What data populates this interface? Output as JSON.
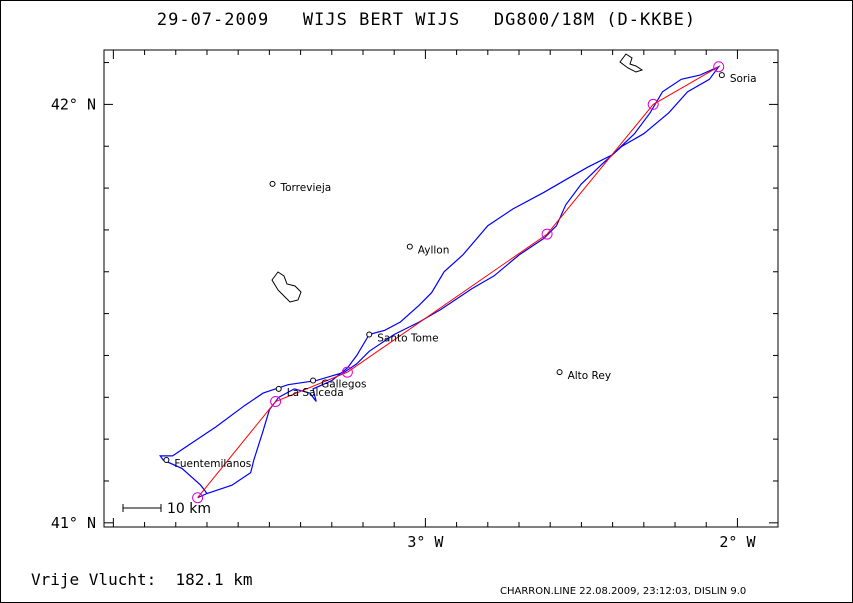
{
  "title": "29-07-2009   WIJS BERT WIJS   DG800/18M (D-KKBE)",
  "footer": {
    "distance_label": "Vrije Vlucht:",
    "distance_value": "182.1 km",
    "credit": "CHARRON.LINE 22.08.2009, 23:12:03, DISLIN 9.0"
  },
  "scale_bar": {
    "label": "10 km"
  },
  "chart_data": {
    "type": "map",
    "axes": {
      "lat_ticks": [
        {
          "value": 42,
          "label": "42° N"
        },
        {
          "value": 41,
          "label": "41° N"
        }
      ],
      "lon_ticks": [
        {
          "value": -3,
          "label": "3° W"
        },
        {
          "value": -2,
          "label": "2° W"
        }
      ],
      "lon_range": [
        -4.03,
        -1.87
      ],
      "lat_range": [
        40.99,
        42.13
      ]
    },
    "places": [
      {
        "name": "Soria",
        "lon": -2.05,
        "lat": 42.07
      },
      {
        "name": "Torrevieja",
        "lon": -3.49,
        "lat": 41.81
      },
      {
        "name": "Ayllon",
        "lon": -3.05,
        "lat": 41.66
      },
      {
        "name": "Santo Tome",
        "lon": -3.18,
        "lat": 41.45
      },
      {
        "name": "Alto Rey",
        "lon": -2.57,
        "lat": 41.36
      },
      {
        "name": "Gallegos",
        "lon": -3.36,
        "lat": 41.34
      },
      {
        "name": "La Salceda",
        "lon": -3.47,
        "lat": 41.32
      },
      {
        "name": "Fuentemilanos",
        "lon": -3.83,
        "lat": 41.15
      }
    ],
    "task_points": [
      {
        "lon": -3.73,
        "lat": 41.06
      },
      {
        "lon": -3.48,
        "lat": 41.29
      },
      {
        "lon": -3.25,
        "lat": 41.36
      },
      {
        "lon": -2.61,
        "lat": 41.69
      },
      {
        "lon": -2.27,
        "lat": 42.0
      },
      {
        "lon": -2.06,
        "lat": 42.09
      }
    ],
    "track": [
      {
        "lon": -3.73,
        "lat": 41.06
      },
      {
        "lon": -3.7,
        "lat": 41.07
      },
      {
        "lon": -3.62,
        "lat": 41.09
      },
      {
        "lon": -3.56,
        "lat": 41.12
      },
      {
        "lon": -3.55,
        "lat": 41.15
      },
      {
        "lon": -3.52,
        "lat": 41.22
      },
      {
        "lon": -3.5,
        "lat": 41.27
      },
      {
        "lon": -3.47,
        "lat": 41.3
      },
      {
        "lon": -3.42,
        "lat": 41.32
      },
      {
        "lon": -3.37,
        "lat": 41.31
      },
      {
        "lon": -3.35,
        "lat": 41.29
      },
      {
        "lon": -3.36,
        "lat": 41.32
      },
      {
        "lon": -3.3,
        "lat": 41.34
      },
      {
        "lon": -3.25,
        "lat": 41.37
      },
      {
        "lon": -3.22,
        "lat": 41.4
      },
      {
        "lon": -3.18,
        "lat": 41.45
      },
      {
        "lon": -3.13,
        "lat": 41.46
      },
      {
        "lon": -3.08,
        "lat": 41.48
      },
      {
        "lon": -3.02,
        "lat": 41.52
      },
      {
        "lon": -2.98,
        "lat": 41.55
      },
      {
        "lon": -2.94,
        "lat": 41.6
      },
      {
        "lon": -2.88,
        "lat": 41.64
      },
      {
        "lon": -2.8,
        "lat": 41.71
      },
      {
        "lon": -2.72,
        "lat": 41.75
      },
      {
        "lon": -2.62,
        "lat": 41.79
      },
      {
        "lon": -2.55,
        "lat": 41.82
      },
      {
        "lon": -2.48,
        "lat": 41.85
      },
      {
        "lon": -2.4,
        "lat": 41.88
      },
      {
        "lon": -2.33,
        "lat": 41.93
      },
      {
        "lon": -2.28,
        "lat": 41.98
      },
      {
        "lon": -2.24,
        "lat": 42.03
      },
      {
        "lon": -2.18,
        "lat": 42.06
      },
      {
        "lon": -2.12,
        "lat": 42.07
      },
      {
        "lon": -2.06,
        "lat": 42.09
      },
      {
        "lon": -2.09,
        "lat": 42.06
      },
      {
        "lon": -2.16,
        "lat": 42.03
      },
      {
        "lon": -2.22,
        "lat": 41.98
      },
      {
        "lon": -2.3,
        "lat": 41.93
      },
      {
        "lon": -2.37,
        "lat": 41.9
      },
      {
        "lon": -2.43,
        "lat": 41.86
      },
      {
        "lon": -2.5,
        "lat": 41.81
      },
      {
        "lon": -2.55,
        "lat": 41.76
      },
      {
        "lon": -2.58,
        "lat": 41.71
      },
      {
        "lon": -2.62,
        "lat": 41.68
      },
      {
        "lon": -2.7,
        "lat": 41.64
      },
      {
        "lon": -2.78,
        "lat": 41.59
      },
      {
        "lon": -2.85,
        "lat": 41.56
      },
      {
        "lon": -2.95,
        "lat": 41.51
      },
      {
        "lon": -3.02,
        "lat": 41.48
      },
      {
        "lon": -3.1,
        "lat": 41.45
      },
      {
        "lon": -3.18,
        "lat": 41.41
      },
      {
        "lon": -3.22,
        "lat": 41.38
      },
      {
        "lon": -3.26,
        "lat": 41.36
      },
      {
        "lon": -3.35,
        "lat": 41.34
      },
      {
        "lon": -3.44,
        "lat": 41.33
      },
      {
        "lon": -3.52,
        "lat": 41.31
      },
      {
        "lon": -3.58,
        "lat": 41.28
      },
      {
        "lon": -3.67,
        "lat": 41.23
      },
      {
        "lon": -3.75,
        "lat": 41.19
      },
      {
        "lon": -3.81,
        "lat": 41.16
      },
      {
        "lon": -3.85,
        "lat": 41.16
      },
      {
        "lon": -3.84,
        "lat": 41.15
      },
      {
        "lon": -3.78,
        "lat": 41.13
      },
      {
        "lon": -3.72,
        "lat": 41.09
      },
      {
        "lon": -3.7,
        "lat": 41.07
      }
    ],
    "colors": {
      "track": "#0000ff",
      "task": "#ff0000",
      "turnpoint": "#dd00dd",
      "frame": "#000000"
    }
  }
}
